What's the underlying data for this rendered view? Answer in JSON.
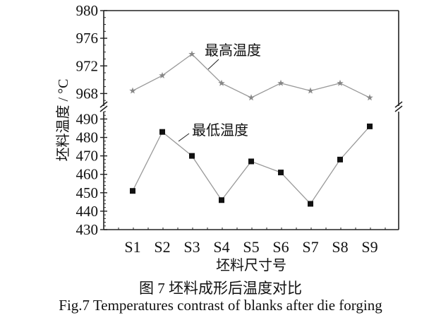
{
  "chart_data": {
    "type": "line",
    "categories": [
      "S1",
      "S2",
      "S3",
      "S4",
      "S5",
      "S6",
      "S7",
      "S8",
      "S9"
    ],
    "xlabel": "坯料尺寸号",
    "ylabel": "坯料温度 / °C",
    "broken_axis": true,
    "grid": false,
    "panels": [
      {
        "ylim": [
          966.2,
          980
        ],
        "yticks": [
          968,
          972,
          976,
          980
        ],
        "series": [
          {
            "name": "最高温度",
            "marker": "star",
            "color": "#888888",
            "values": [
              968.4,
              970.6,
              973.7,
              969.5,
              967.4,
              969.5,
              968.4,
              969.5,
              967.4
            ]
          }
        ]
      },
      {
        "ylim": [
          430,
          494
        ],
        "yticks": [
          430,
          440,
          450,
          460,
          470,
          480,
          490
        ],
        "series": [
          {
            "name": "最低温度",
            "marker": "square",
            "color": "#111111",
            "values": [
              451,
              483,
              470,
              446,
              467,
              461,
              444,
              468,
              486
            ]
          }
        ]
      }
    ]
  },
  "caption": {
    "cn": "图 7   坯料成形后温度对比",
    "en": "Fig.7  Temperatures contrast of blanks after die forging"
  }
}
